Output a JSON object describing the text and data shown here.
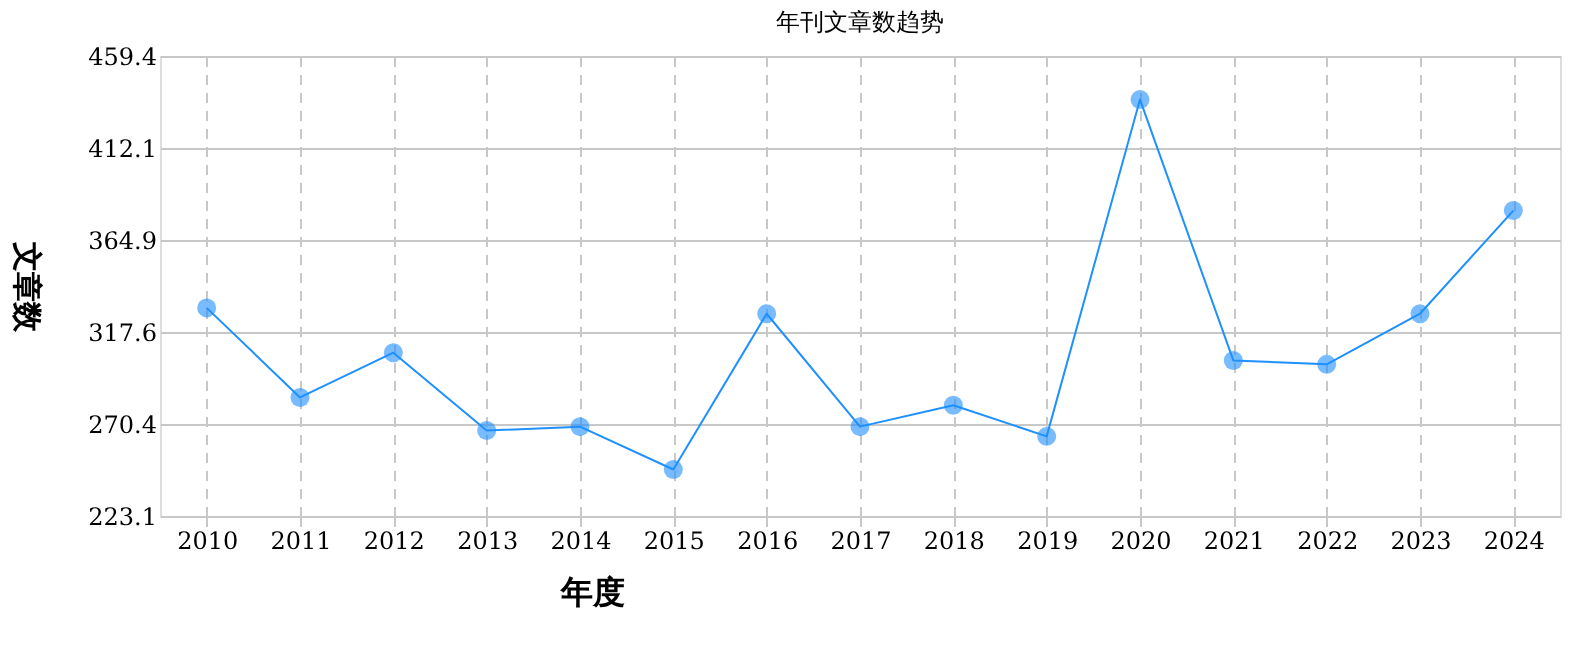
{
  "chart_data": {
    "type": "line",
    "title": "年刊文章数趋势",
    "xlabel": "年度",
    "ylabel": "文章数",
    "categories": [
      "2010",
      "2011",
      "2012",
      "2013",
      "2014",
      "2015",
      "2016",
      "2017",
      "2018",
      "2019",
      "2020",
      "2021",
      "2022",
      "2023",
      "2024"
    ],
    "series": [
      {
        "color": "#1e90ff",
        "values": [
          330,
          284,
          307,
          267,
          269,
          247,
          327,
          269,
          280,
          264,
          437,
          303,
          301,
          327,
          380
        ]
      }
    ],
    "ylim": [
      223.1,
      459.4
    ],
    "yticks": [
      223.1,
      270.4,
      317.6,
      364.9,
      412.1,
      459.4
    ],
    "grid": true,
    "marker": "circle",
    "line_style": "solid"
  }
}
